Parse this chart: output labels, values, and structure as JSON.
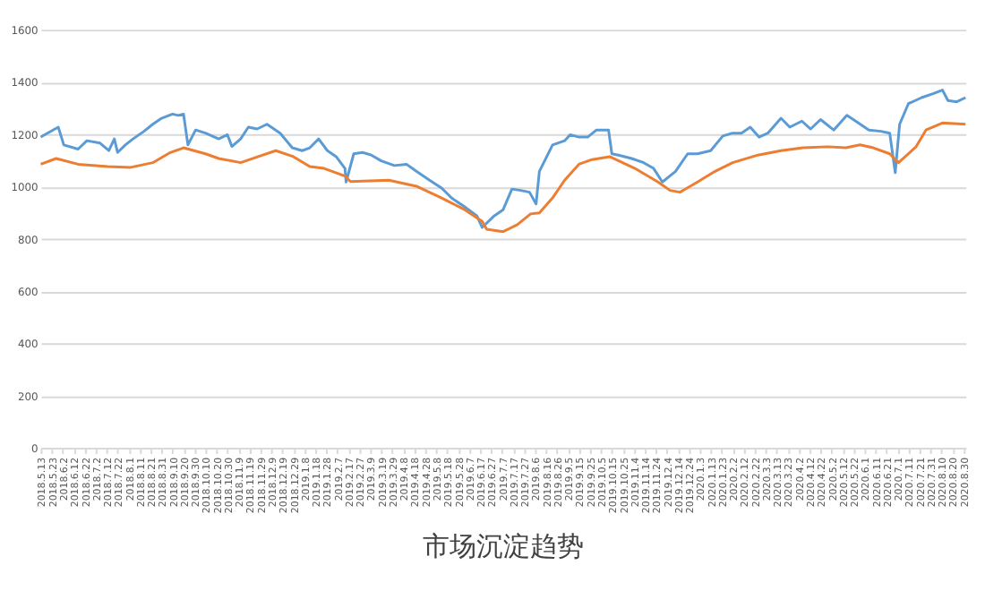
{
  "chart_data": {
    "type": "line",
    "title": "市场沉淀趋势",
    "grid": "y",
    "ylim": [
      0,
      1600
    ],
    "yticks": [
      0,
      200,
      400,
      600,
      800,
      1000,
      1200,
      1400,
      1600
    ],
    "xlim": [
      "2018-05-13",
      "2020-09-01"
    ],
    "xticks": [
      {
        "value": "2018-05-13",
        "label": "2018.5.13"
      },
      {
        "value": "2018-05-23",
        "label": "2018.5.23"
      },
      {
        "value": "2018-06-02",
        "label": "2018.6.2"
      },
      {
        "value": "2018-06-12",
        "label": "2018.6.12"
      },
      {
        "value": "2018-06-22",
        "label": "2018.6.22"
      },
      {
        "value": "2018-07-02",
        "label": "2018.7.2"
      },
      {
        "value": "2018-07-12",
        "label": "2018.7.12"
      },
      {
        "value": "2018-07-22",
        "label": "2018.7.22"
      },
      {
        "value": "2018-08-01",
        "label": "2018.8.1"
      },
      {
        "value": "2018-08-11",
        "label": "2018.8.11"
      },
      {
        "value": "2018-08-21",
        "label": "2018.8.21"
      },
      {
        "value": "2018-08-31",
        "label": "2018.8.31"
      },
      {
        "value": "2018-09-10",
        "label": "2018.9.10"
      },
      {
        "value": "2018-09-20",
        "label": "2018.9.20"
      },
      {
        "value": "2018-09-30",
        "label": "2018.9.30"
      },
      {
        "value": "2018-10-10",
        "label": "2018.10.10"
      },
      {
        "value": "2018-10-20",
        "label": "2018.10.20"
      },
      {
        "value": "2018-10-30",
        "label": "2018.10.30"
      },
      {
        "value": "2018-11-09",
        "label": "2018.11.9"
      },
      {
        "value": "2018-11-19",
        "label": "2018.11.19"
      },
      {
        "value": "2018-11-29",
        "label": "2018.11.29"
      },
      {
        "value": "2018-12-09",
        "label": "2018.12.9"
      },
      {
        "value": "2018-12-19",
        "label": "2018.12.19"
      },
      {
        "value": "2018-12-29",
        "label": "2018.12.29"
      },
      {
        "value": "2019-01-08",
        "label": "2019.1.8"
      },
      {
        "value": "2019-01-18",
        "label": "2019.1.18"
      },
      {
        "value": "2019-01-28",
        "label": "2019.1.28"
      },
      {
        "value": "2019-02-07",
        "label": "2019.2.7"
      },
      {
        "value": "2019-02-17",
        "label": "2019.2.17"
      },
      {
        "value": "2019-02-27",
        "label": "2019.2.27"
      },
      {
        "value": "2019-03-09",
        "label": "2019.3.9"
      },
      {
        "value": "2019-03-19",
        "label": "2019.3.19"
      },
      {
        "value": "2019-03-29",
        "label": "2019.3.29"
      },
      {
        "value": "2019-04-08",
        "label": "2019.4.8"
      },
      {
        "value": "2019-04-18",
        "label": "2019.4.18"
      },
      {
        "value": "2019-04-28",
        "label": "2019.4.28"
      },
      {
        "value": "2019-05-08",
        "label": "2019.5.8"
      },
      {
        "value": "2019-05-18",
        "label": "2019.5.18"
      },
      {
        "value": "2019-05-28",
        "label": "2019.5.28"
      },
      {
        "value": "2019-06-07",
        "label": "2019.6.7"
      },
      {
        "value": "2019-06-17",
        "label": "2019.6.17"
      },
      {
        "value": "2019-06-27",
        "label": "2019.6.27"
      },
      {
        "value": "2019-07-07",
        "label": "2019.7.7"
      },
      {
        "value": "2019-07-17",
        "label": "2019.7.17"
      },
      {
        "value": "2019-07-27",
        "label": "2019.7.27"
      },
      {
        "value": "2019-08-06",
        "label": "2019.8.6"
      },
      {
        "value": "2019-08-16",
        "label": "2019.8.16"
      },
      {
        "value": "2019-08-26",
        "label": "2019.8.26"
      },
      {
        "value": "2019-09-05",
        "label": "2019.9.5"
      },
      {
        "value": "2019-09-15",
        "label": "2019.9.15"
      },
      {
        "value": "2019-09-25",
        "label": "2019.9.25"
      },
      {
        "value": "2019-10-05",
        "label": "2019.10.5"
      },
      {
        "value": "2019-10-15",
        "label": "2019.10.15"
      },
      {
        "value": "2019-10-25",
        "label": "2019.10.25"
      },
      {
        "value": "2019-11-04",
        "label": "2019.11.4"
      },
      {
        "value": "2019-11-14",
        "label": "2019.11.14"
      },
      {
        "value": "2019-11-24",
        "label": "2019.11.24"
      },
      {
        "value": "2019-12-04",
        "label": "2019.12.4"
      },
      {
        "value": "2019-12-14",
        "label": "2019.12.14"
      },
      {
        "value": "2019-12-24",
        "label": "2019.12.24"
      },
      {
        "value": "2020-01-03",
        "label": "2020.1.3"
      },
      {
        "value": "2020-01-13",
        "label": "2020.1.13"
      },
      {
        "value": "2020-01-23",
        "label": "2020.1.23"
      },
      {
        "value": "2020-02-02",
        "label": "2020.2.2"
      },
      {
        "value": "2020-02-12",
        "label": "2020.2.12"
      },
      {
        "value": "2020-02-22",
        "label": "2020.2.22"
      },
      {
        "value": "2020-03-03",
        "label": "2020.3.3"
      },
      {
        "value": "2020-03-13",
        "label": "2020.3.13"
      },
      {
        "value": "2020-03-23",
        "label": "2020.3.23"
      },
      {
        "value": "2020-04-02",
        "label": "2020.4.2"
      },
      {
        "value": "2020-04-12",
        "label": "2020.4.12"
      },
      {
        "value": "2020-04-22",
        "label": "2020.4.22"
      },
      {
        "value": "2020-05-02",
        "label": "2020.5.2"
      },
      {
        "value": "2020-05-12",
        "label": "2020.5.12"
      },
      {
        "value": "2020-05-22",
        "label": "2020.5.22"
      },
      {
        "value": "2020-06-01",
        "label": "2020.6.1"
      },
      {
        "value": "2020-06-11",
        "label": "2020.6.11"
      },
      {
        "value": "2020-06-21",
        "label": "2020.6.21"
      },
      {
        "value": "2020-07-01",
        "label": "2020.7.1"
      },
      {
        "value": "2020-07-11",
        "label": "2020.7.11"
      },
      {
        "value": "2020-07-21",
        "label": "2020.7.21"
      },
      {
        "value": "2020-07-31",
        "label": "2020.7.31"
      },
      {
        "value": "2020-08-10",
        "label": "2020.8.10"
      },
      {
        "value": "2020-08-20",
        "label": "2020.8.20"
      },
      {
        "value": "2020-08-30",
        "label": "2020.8.30"
      }
    ],
    "series": [
      {
        "color": "#5b9bd5",
        "x": [
          "2018-05-13",
          "2018-05-26",
          "2018-05-29",
          "2018-06-03",
          "2018-06-16",
          "2018-06-24",
          "2018-07-06",
          "2018-07-14",
          "2018-07-19",
          "2018-07-22",
          "2018-07-29",
          "2018-08-05",
          "2018-08-15",
          "2018-08-23",
          "2018-08-31",
          "2018-09-10",
          "2018-09-15",
          "2018-09-20",
          "2018-09-24",
          "2018-10-01",
          "2018-10-10",
          "2018-10-22",
          "2018-10-30",
          "2018-11-03",
          "2018-11-11",
          "2018-11-18",
          "2018-11-26",
          "2018-12-05",
          "2018-12-17",
          "2018-12-28",
          "2019-01-06",
          "2019-01-13",
          "2019-01-21",
          "2019-01-29",
          "2019-02-06",
          "2019-02-14",
          "2019-02-15",
          "2019-02-22",
          "2019-03-02",
          "2019-03-10",
          "2019-03-19",
          "2019-03-31",
          "2019-04-11",
          "2019-04-20",
          "2019-05-02",
          "2019-05-13",
          "2019-05-22",
          "2019-06-03",
          "2019-06-14",
          "2019-06-19",
          "2019-06-30",
          "2019-07-08",
          "2019-07-16",
          "2019-07-24",
          "2019-08-01",
          "2019-08-07",
          "2019-08-10",
          "2019-08-22",
          "2019-09-02",
          "2019-09-07",
          "2019-09-15",
          "2019-09-23",
          "2019-10-01",
          "2019-10-12",
          "2019-10-15",
          "2019-10-21",
          "2019-11-02",
          "2019-11-13",
          "2019-11-22",
          "2019-11-30",
          "2019-12-12",
          "2019-12-23",
          "2020-01-01",
          "2020-01-13",
          "2020-01-24",
          "2020-02-02",
          "2020-02-10",
          "2020-02-18",
          "2020-02-26",
          "2020-03-05",
          "2020-03-17",
          "2020-03-25",
          "2020-04-05",
          "2020-04-13",
          "2020-04-22",
          "2020-05-04",
          "2020-05-16",
          "2020-05-24",
          "2020-06-05",
          "2020-06-16",
          "2020-06-24",
          "2020-06-29",
          "2020-07-03",
          "2020-07-11",
          "2020-07-23",
          "2020-08-03",
          "2020-08-11",
          "2020-08-16",
          "2020-08-24",
          "2020-09-01"
        ],
        "values": [
          1189,
          1220,
          1227,
          1159,
          1143,
          1175,
          1166,
          1137,
          1182,
          1130,
          1159,
          1182,
          1211,
          1238,
          1261,
          1277,
          1272,
          1277,
          1159,
          1216,
          1204,
          1182,
          1198,
          1153,
          1182,
          1227,
          1220,
          1238,
          1204,
          1148,
          1137,
          1148,
          1182,
          1137,
          1114,
          1069,
          1017,
          1125,
          1130,
          1120,
          1098,
          1080,
          1085,
          1058,
          1024,
          994,
          956,
          922,
          888,
          843,
          888,
          911,
          990,
          985,
          978,
          933,
          1058,
          1159,
          1175,
          1198,
          1189,
          1189,
          1216,
          1216,
          1125,
          1120,
          1107,
          1091,
          1069,
          1017,
          1058,
          1125,
          1125,
          1137,
          1193,
          1204,
          1204,
          1227,
          1189,
          1204,
          1261,
          1227,
          1250,
          1220,
          1256,
          1216,
          1272,
          1250,
          1216,
          1211,
          1204,
          1053,
          1238,
          1317,
          1340,
          1356,
          1369,
          1329,
          1324,
          1340
        ]
      },
      {
        "color": "#ed7d31",
        "x": [
          "2018-05-13",
          "2018-05-27",
          "2018-06-16",
          "2018-07-13",
          "2018-08-03",
          "2018-08-23",
          "2018-09-08",
          "2018-09-20",
          "2018-10-10",
          "2018-10-22",
          "2018-11-11",
          "2018-11-27",
          "2018-12-13",
          "2018-12-29",
          "2019-01-13",
          "2019-01-26",
          "2019-02-14",
          "2019-02-19",
          "2019-03-26",
          "2019-04-20",
          "2019-05-13",
          "2019-06-03",
          "2019-06-19",
          "2019-06-23",
          "2019-07-08",
          "2019-07-21",
          "2019-08-02",
          "2019-08-10",
          "2019-08-22",
          "2019-09-02",
          "2019-09-15",
          "2019-09-27",
          "2019-10-13",
          "2019-11-05",
          "2019-11-26",
          "2019-12-07",
          "2019-12-16",
          "2020-01-01",
          "2020-01-17",
          "2020-02-02",
          "2020-02-25",
          "2020-03-17",
          "2020-04-06",
          "2020-04-29",
          "2020-05-15",
          "2020-05-28",
          "2020-06-09",
          "2020-06-24",
          "2020-07-02",
          "2020-07-18",
          "2020-07-27",
          "2020-08-11",
          "2020-09-01"
        ],
        "values": [
          1085,
          1107,
          1085,
          1076,
          1073,
          1091,
          1130,
          1148,
          1125,
          1107,
          1091,
          1114,
          1137,
          1114,
          1076,
          1069,
          1040,
          1019,
          1024,
          1001,
          956,
          911,
          866,
          836,
          827,
          854,
          895,
          899,
          956,
          1024,
          1085,
          1103,
          1114,
          1069,
          1017,
          985,
          978,
          1017,
          1058,
          1091,
          1120,
          1137,
          1148,
          1152,
          1148,
          1159,
          1148,
          1125,
          1091,
          1152,
          1216,
          1243,
          1238
        ]
      }
    ]
  }
}
